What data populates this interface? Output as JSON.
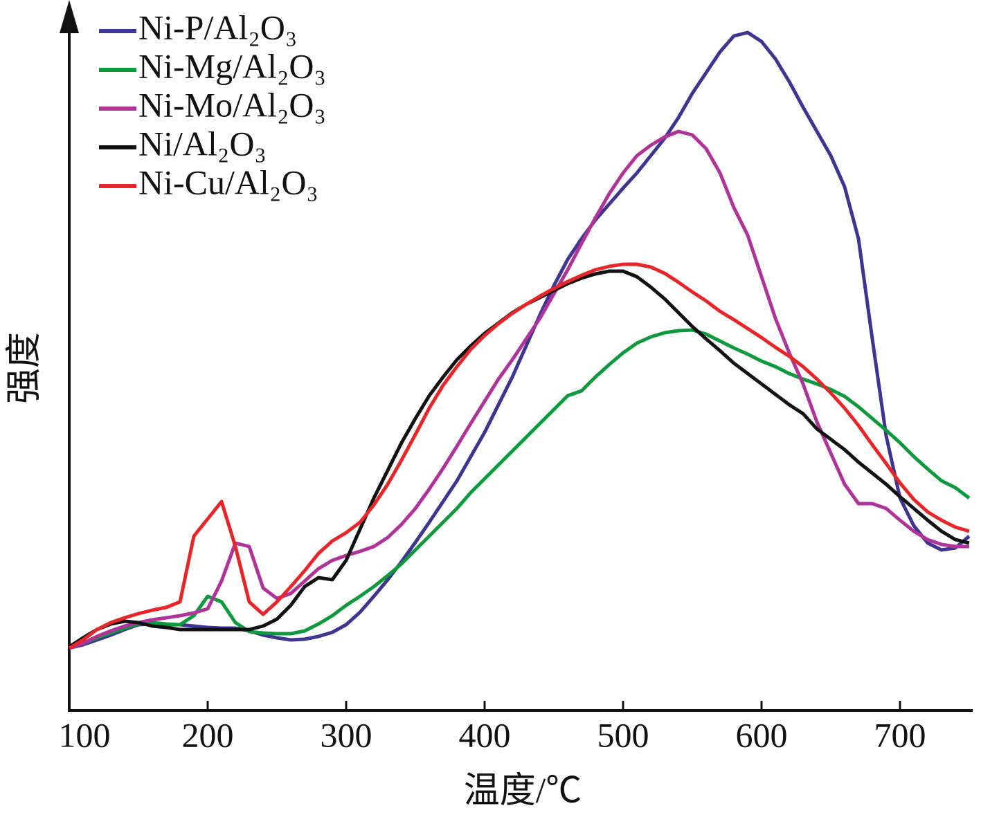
{
  "chart_data": {
    "type": "line",
    "xlabel": "温度/℃",
    "ylabel": "强度",
    "x": [
      100,
      110,
      120,
      130,
      140,
      150,
      160,
      170,
      180,
      190,
      200,
      210,
      220,
      230,
      240,
      250,
      260,
      270,
      280,
      290,
      300,
      310,
      320,
      330,
      340,
      350,
      360,
      370,
      380,
      390,
      400,
      410,
      420,
      430,
      440,
      450,
      460,
      470,
      480,
      490,
      500,
      510,
      520,
      530,
      540,
      550,
      560,
      570,
      580,
      590,
      600,
      610,
      620,
      630,
      640,
      650,
      660,
      670,
      680,
      690,
      700,
      710,
      720,
      730,
      740,
      750
    ],
    "xlim": [
      100,
      750
    ],
    "xticks": [
      100,
      200,
      300,
      400,
      500,
      600,
      700
    ],
    "ylim": [
      0,
      100
    ],
    "legend": "upper left",
    "series": [
      {
        "name": "Ni-P/Al₂O₃",
        "color": "#3d3591",
        "values": [
          8.8,
          9.3,
          10.0,
          10.7,
          11.5,
          12.2,
          12.3,
          12.2,
          12.2,
          12.0,
          11.8,
          11.7,
          11.7,
          11.3,
          10.7,
          10.3,
          10.0,
          10.1,
          10.5,
          11.1,
          12.2,
          14.0,
          16.3,
          18.7,
          21.3,
          24.1,
          27.0,
          30.0,
          33.0,
          36.5,
          40.0,
          44.0,
          48.0,
          52.5,
          57.0,
          61.2,
          65.0,
          68.0,
          70.7,
          73.0,
          75.3,
          77.5,
          80.0,
          82.5,
          85.5,
          89.0,
          92.0,
          95.0,
          97.3,
          97.8,
          96.5,
          94.0,
          90.7,
          87.0,
          83.5,
          80.0,
          75.5,
          68.0,
          53.5,
          39.5,
          30.5,
          26.5,
          24.0,
          23.0,
          23.3,
          25.0
        ]
      },
      {
        "name": "Ni-Mg/Al₂O₃",
        "color": "#0c9a3c",
        "values": [
          8.8,
          9.5,
          10.3,
          11.0,
          11.7,
          12.3,
          12.5,
          12.3,
          12.2,
          13.5,
          16.3,
          15.5,
          12.5,
          11.2,
          11.0,
          10.9,
          10.9,
          11.3,
          12.3,
          13.5,
          15.0,
          16.3,
          17.7,
          19.3,
          21.0,
          23.0,
          25.0,
          27.0,
          29.0,
          31.3,
          33.3,
          35.3,
          37.3,
          39.3,
          41.3,
          43.3,
          45.3,
          46.0,
          48.0,
          49.8,
          51.5,
          52.9,
          53.8,
          54.4,
          54.7,
          54.8,
          54.2,
          53.2,
          52.2,
          51.3,
          50.3,
          49.5,
          48.5,
          47.7,
          47.0,
          46.2,
          45.2,
          43.7,
          42.0,
          40.3,
          38.5,
          36.5,
          34.7,
          33.0,
          32.0,
          30.5
        ]
      },
      {
        "name": "Ni-Mo/Al₂O₃",
        "color": "#b0339a",
        "values": [
          8.8,
          9.5,
          10.5,
          11.3,
          12.0,
          12.5,
          12.9,
          13.2,
          13.5,
          13.9,
          14.5,
          18.5,
          24.0,
          23.5,
          17.5,
          16.0,
          16.7,
          18.5,
          20.3,
          21.5,
          22.2,
          22.8,
          23.5,
          24.8,
          26.7,
          29.0,
          31.8,
          34.8,
          38.0,
          41.3,
          44.5,
          47.7,
          50.5,
          53.5,
          56.5,
          60.0,
          63.5,
          67.3,
          71.0,
          74.5,
          77.5,
          80.0,
          81.5,
          82.7,
          83.5,
          83.0,
          81.0,
          77.5,
          72.5,
          68.5,
          62.5,
          56.5,
          51.5,
          47.0,
          41.5,
          37.0,
          32.5,
          29.7,
          29.7,
          29.0,
          27.3,
          25.7,
          24.5,
          23.8,
          23.5,
          23.5
        ]
      },
      {
        "name": "Ni/Al₂O₃",
        "color": "#111111",
        "values": [
          9.0,
          10.3,
          11.5,
          12.3,
          12.7,
          12.5,
          12.0,
          11.8,
          11.5,
          11.5,
          11.5,
          11.5,
          11.5,
          11.5,
          12.0,
          13.0,
          15.0,
          17.7,
          19.0,
          18.7,
          21.5,
          26.0,
          30.5,
          34.5,
          38.5,
          42.0,
          45.3,
          48.0,
          50.5,
          52.5,
          54.3,
          55.8,
          57.3,
          58.5,
          59.5,
          60.5,
          61.5,
          62.3,
          62.9,
          63.3,
          63.3,
          62.5,
          61.0,
          59.3,
          57.3,
          55.3,
          53.5,
          51.8,
          50.0,
          48.5,
          47.0,
          45.5,
          44.0,
          42.7,
          40.5,
          39.0,
          37.5,
          35.7,
          34.1,
          32.5,
          30.7,
          29.0,
          27.3,
          25.7,
          24.5,
          24.0
        ]
      },
      {
        "name": "Ni-Cu/Al₂O₃",
        "color": "#e8262a",
        "values": [
          8.8,
          10.0,
          11.5,
          12.5,
          13.2,
          13.8,
          14.3,
          14.7,
          15.5,
          25.0,
          27.5,
          30.0,
          23.5,
          15.5,
          13.7,
          15.5,
          17.7,
          20.0,
          22.5,
          24.3,
          25.5,
          27.0,
          29.5,
          32.5,
          36.0,
          39.7,
          43.5,
          46.8,
          49.5,
          52.0,
          54.0,
          55.7,
          57.2,
          58.5,
          59.7,
          60.8,
          61.8,
          62.7,
          63.5,
          64.0,
          64.3,
          64.3,
          63.9,
          63.0,
          61.7,
          60.3,
          59.0,
          57.5,
          56.3,
          55.0,
          53.7,
          52.3,
          51.0,
          49.5,
          47.7,
          45.7,
          43.5,
          41.0,
          38.2,
          35.5,
          32.7,
          30.3,
          28.5,
          27.3,
          26.3,
          25.7
        ]
      }
    ]
  }
}
